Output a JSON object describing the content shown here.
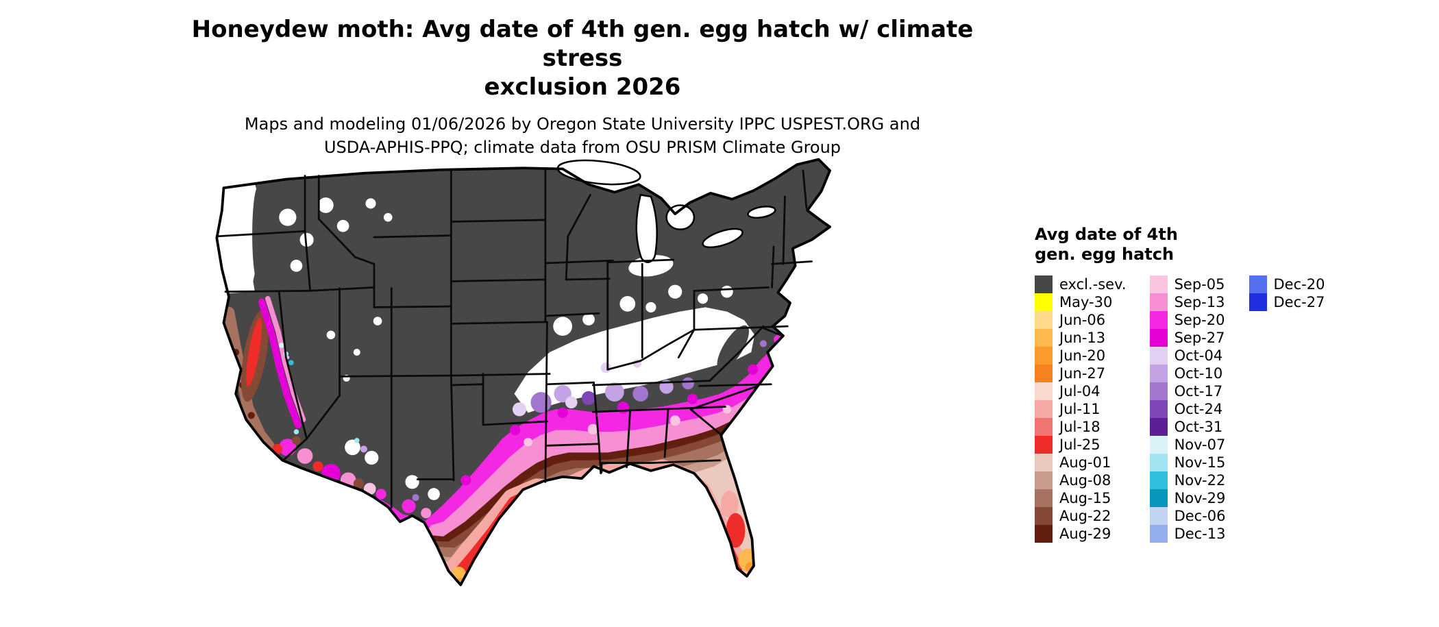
{
  "header": {
    "title_line1": "Honeydew moth: Avg date of 4th gen. egg hatch w/ climate stress",
    "title_line2": "exclusion 2026",
    "subtitle_line1": "Maps and modeling 01/06/2026 by Oregon State University IPPC USPEST.ORG and",
    "subtitle_line2": "USDA-APHIS-PPQ; climate data from OSU PRISM Climate Group"
  },
  "legend": {
    "title_line1": "Avg date of 4th",
    "title_line2": "gen. egg hatch",
    "columns": [
      [
        {
          "label": "excl.-sev.",
          "key": "excl"
        },
        {
          "label": "May-30",
          "key": "may30"
        },
        {
          "label": "Jun-06",
          "key": "jun06"
        },
        {
          "label": "Jun-13",
          "key": "jun13"
        },
        {
          "label": "Jun-20",
          "key": "jun20"
        },
        {
          "label": "Jun-27",
          "key": "jun27"
        },
        {
          "label": "Jul-04",
          "key": "jul04"
        },
        {
          "label": "Jul-11",
          "key": "jul11"
        },
        {
          "label": "Jul-18",
          "key": "jul18"
        },
        {
          "label": "Jul-25",
          "key": "jul25"
        },
        {
          "label": "Aug-01",
          "key": "aug01"
        },
        {
          "label": "Aug-08",
          "key": "aug08"
        },
        {
          "label": "Aug-15",
          "key": "aug15"
        },
        {
          "label": "Aug-22",
          "key": "aug22"
        },
        {
          "label": "Aug-29",
          "key": "aug29"
        }
      ],
      [
        {
          "label": "Sep-05",
          "key": "sep05"
        },
        {
          "label": "Sep-13",
          "key": "sep13"
        },
        {
          "label": "Sep-20",
          "key": "sep20"
        },
        {
          "label": "Sep-27",
          "key": "sep27"
        },
        {
          "label": "Oct-04",
          "key": "oct04"
        },
        {
          "label": "Oct-10",
          "key": "oct10"
        },
        {
          "label": "Oct-17",
          "key": "oct17"
        },
        {
          "label": "Oct-24",
          "key": "oct24"
        },
        {
          "label": "Oct-31",
          "key": "oct31"
        },
        {
          "label": "Nov-07",
          "key": "nov07"
        },
        {
          "label": "Nov-15",
          "key": "nov15"
        },
        {
          "label": "Nov-22",
          "key": "nov22"
        },
        {
          "label": "Nov-29",
          "key": "nov29"
        },
        {
          "label": "Dec-06",
          "key": "dec06"
        },
        {
          "label": "Dec-13",
          "key": "dec13"
        }
      ],
      [
        {
          "label": "Dec-20",
          "key": "dec20"
        },
        {
          "label": "Dec-27",
          "key": "dec27"
        }
      ]
    ]
  },
  "palette": {
    "excl": "#474747",
    "may30": "#ffff00",
    "jun06": "#fed98b",
    "jun13": "#fdb94d",
    "jun20": "#fb9b2c",
    "jun27": "#f5821f",
    "jul04": "#fbd9cf",
    "jul11": "#f5a8a4",
    "jul18": "#f07470",
    "jul25": "#ee2c2a",
    "aug01": "#ecc9bf",
    "aug08": "#c99c8d",
    "aug15": "#a87261",
    "aug22": "#864936",
    "aug29": "#621f10",
    "sep05": "#fbc4e1",
    "sep13": "#f78fd3",
    "sep20": "#f428e2",
    "sep27": "#e500d8",
    "oct04": "#e3d0f2",
    "oct10": "#c3a3e4",
    "oct17": "#a276cf",
    "oct24": "#7f46b5",
    "oct31": "#5c1d96",
    "nov07": "#d9f3f8",
    "nov15": "#a1e4f2",
    "nov22": "#2fbede",
    "nov29": "#0797bd",
    "dec06": "#c3d4f2",
    "dec13": "#93aff0",
    "dec20": "#5570ee",
    "dec27": "#1f2fe0",
    "nodata": "#ffffff",
    "border": "#000000"
  }
}
